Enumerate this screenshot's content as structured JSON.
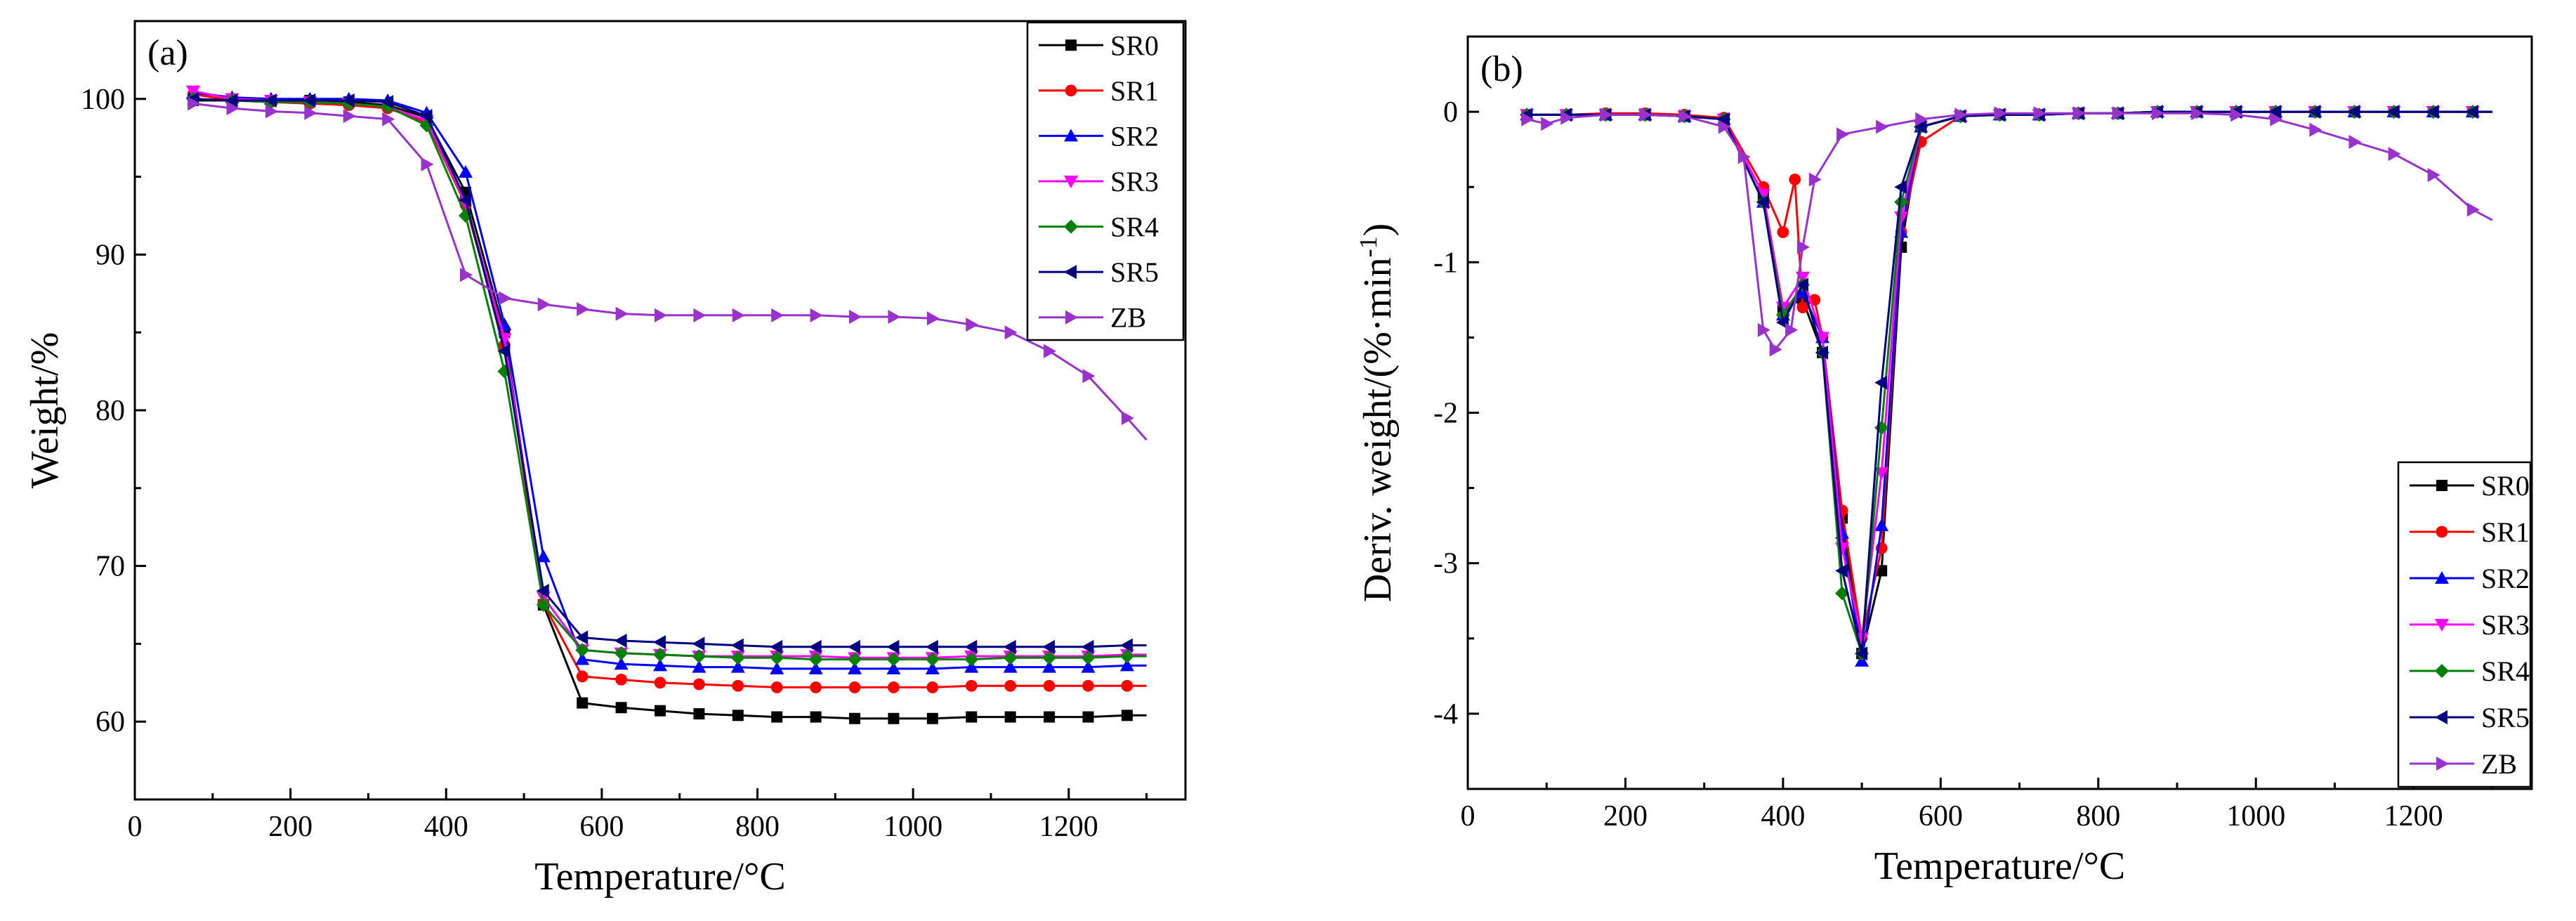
{
  "chart_data": [
    {
      "type": "line",
      "panel_label": "(a)",
      "xlabel": "Temperature/°C",
      "ylabel": "Weight/%",
      "xlim": [
        0,
        1350
      ],
      "ylim": [
        55,
        105
      ],
      "xticks": [
        0,
        200,
        400,
        600,
        800,
        1000,
        1200
      ],
      "yticks": [
        60,
        70,
        80,
        90,
        100
      ],
      "legend_position": "top-right",
      "grid": false,
      "series": [
        {
          "name": "SR0",
          "color": "#000000",
          "marker": "square",
          "x": [
            75,
            125,
            175,
            225,
            275,
            325,
            375,
            425,
            475,
            525,
            575,
            625,
            675,
            725,
            775,
            825,
            875,
            925,
            975,
            1025,
            1075,
            1125,
            1175,
            1225,
            1275,
            1300
          ],
          "y": [
            99.9,
            99.9,
            99.9,
            99.9,
            99.8,
            99.6,
            98.8,
            94.0,
            85.0,
            67.5,
            61.2,
            60.9,
            60.7,
            60.5,
            60.4,
            60.3,
            60.3,
            60.2,
            60.2,
            60.2,
            60.3,
            60.3,
            60.3,
            60.3,
            60.4,
            60.4
          ]
        },
        {
          "name": "SR1",
          "color": "#ff0000",
          "marker": "circle",
          "x": [
            75,
            125,
            175,
            225,
            275,
            325,
            375,
            425,
            475,
            525,
            575,
            625,
            675,
            725,
            775,
            825,
            875,
            925,
            975,
            1025,
            1075,
            1125,
            1175,
            1225,
            1275,
            1300
          ],
          "y": [
            100.3,
            99.9,
            99.8,
            99.7,
            99.6,
            99.4,
            98.5,
            93.2,
            84.2,
            67.6,
            62.9,
            62.7,
            62.5,
            62.4,
            62.3,
            62.2,
            62.2,
            62.2,
            62.2,
            62.2,
            62.3,
            62.3,
            62.3,
            62.3,
            62.3,
            62.3
          ]
        },
        {
          "name": "SR2",
          "color": "#0000ff",
          "marker": "triangle-up",
          "x": [
            75,
            125,
            175,
            225,
            275,
            325,
            375,
            425,
            475,
            525,
            575,
            625,
            675,
            725,
            775,
            825,
            875,
            925,
            975,
            1025,
            1075,
            1125,
            1175,
            1225,
            1275,
            1300
          ],
          "y": [
            100.4,
            100.1,
            100.0,
            100.0,
            100.0,
            99.9,
            99.1,
            95.3,
            85.5,
            70.6,
            64.0,
            63.7,
            63.6,
            63.5,
            63.5,
            63.4,
            63.4,
            63.4,
            63.4,
            63.4,
            63.5,
            63.5,
            63.5,
            63.5,
            63.6,
            63.6
          ]
        },
        {
          "name": "SR3",
          "color": "#ff00ff",
          "marker": "triangle-down",
          "x": [
            75,
            125,
            175,
            225,
            275,
            325,
            375,
            425,
            475,
            525,
            575,
            625,
            675,
            725,
            775,
            825,
            875,
            925,
            975,
            1025,
            1075,
            1125,
            1175,
            1225,
            1275,
            1300
          ],
          "y": [
            100.5,
            100.0,
            99.9,
            99.8,
            99.7,
            99.5,
            98.6,
            93.3,
            84.6,
            68.0,
            64.6,
            64.4,
            64.3,
            64.2,
            64.2,
            64.2,
            64.2,
            64.1,
            64.1,
            64.1,
            64.2,
            64.2,
            64.2,
            64.2,
            64.3,
            64.3
          ]
        },
        {
          "name": "SR4",
          "color": "#008000",
          "marker": "diamond",
          "x": [
            75,
            125,
            175,
            225,
            275,
            325,
            375,
            425,
            475,
            525,
            575,
            625,
            675,
            725,
            775,
            825,
            875,
            925,
            975,
            1025,
            1075,
            1125,
            1175,
            1225,
            1275,
            1300
          ],
          "y": [
            100.0,
            99.9,
            99.8,
            99.8,
            99.7,
            99.5,
            98.3,
            92.5,
            82.5,
            67.5,
            64.6,
            64.4,
            64.3,
            64.2,
            64.1,
            64.1,
            64.0,
            64.0,
            64.0,
            64.0,
            64.0,
            64.1,
            64.1,
            64.1,
            64.2,
            64.2
          ]
        },
        {
          "name": "SR5",
          "color": "#000080",
          "marker": "triangle-left",
          "x": [
            75,
            125,
            175,
            225,
            275,
            325,
            375,
            425,
            475,
            525,
            575,
            625,
            675,
            725,
            775,
            825,
            875,
            925,
            975,
            1025,
            1075,
            1125,
            1175,
            1225,
            1275,
            1300
          ],
          "y": [
            100.0,
            99.9,
            99.9,
            99.9,
            99.9,
            99.8,
            98.9,
            93.5,
            83.8,
            68.4,
            65.4,
            65.2,
            65.1,
            65.0,
            64.9,
            64.8,
            64.8,
            64.8,
            64.8,
            64.8,
            64.8,
            64.8,
            64.8,
            64.8,
            64.9,
            64.9
          ]
        },
        {
          "name": "ZB",
          "color": "#9932cc",
          "marker": "triangle-right",
          "x": [
            75,
            125,
            175,
            225,
            275,
            325,
            375,
            425,
            475,
            525,
            575,
            625,
            675,
            725,
            775,
            825,
            875,
            925,
            975,
            1025,
            1075,
            1125,
            1175,
            1225,
            1275,
            1300
          ],
          "y": [
            99.7,
            99.4,
            99.2,
            99.1,
            98.9,
            98.7,
            95.8,
            88.7,
            87.2,
            86.8,
            86.5,
            86.2,
            86.1,
            86.1,
            86.1,
            86.1,
            86.1,
            86.0,
            86.0,
            85.9,
            85.5,
            85.0,
            83.8,
            82.2,
            79.5,
            78.1
          ]
        }
      ]
    },
    {
      "type": "line",
      "panel_label": "(b)",
      "xlabel": "Temperature/°C",
      "ylabel": "Deriv. weight/(%·min",
      "ylabel_superscript": "-1",
      "ylabel_suffix": ")",
      "xlim": [
        0,
        1350
      ],
      "ylim": [
        -4.5,
        0.5
      ],
      "xticks": [
        0,
        200,
        400,
        600,
        800,
        1000,
        1200
      ],
      "yticks": [
        0,
        -1,
        -2,
        -3,
        -4
      ],
      "legend_position": "bottom-right",
      "grid": false,
      "series": [
        {
          "name": "SR0",
          "color": "#000000",
          "marker": "square",
          "x": [
            75,
            125,
            175,
            225,
            275,
            325,
            375,
            400,
            425,
            450,
            475,
            500,
            525,
            550,
            575,
            625,
            675,
            725,
            775,
            825,
            875,
            925,
            975,
            1025,
            1075,
            1125,
            1175,
            1225,
            1275,
            1300
          ],
          "y": [
            -0.02,
            -0.02,
            -0.02,
            -0.02,
            -0.03,
            -0.05,
            -0.55,
            -1.3,
            -1.25,
            -1.6,
            -2.7,
            -3.6,
            -3.05,
            -0.9,
            -0.1,
            -0.03,
            -0.02,
            -0.02,
            -0.01,
            -0.01,
            0.0,
            0.0,
            0.0,
            0.0,
            0.0,
            0.0,
            0.0,
            0.0,
            0.0,
            0.0
          ]
        },
        {
          "name": "SR1",
          "color": "#ff0000",
          "marker": "circle",
          "x": [
            75,
            125,
            175,
            225,
            275,
            325,
            375,
            400,
            415,
            425,
            440,
            450,
            475,
            500,
            525,
            550,
            575,
            625,
            675,
            725,
            775,
            825,
            875,
            925,
            975,
            1025,
            1075,
            1125,
            1175,
            1225,
            1275,
            1300
          ],
          "y": [
            -0.02,
            -0.02,
            -0.01,
            -0.01,
            -0.02,
            -0.04,
            -0.5,
            -0.8,
            -0.45,
            -1.3,
            -1.25,
            -1.5,
            -2.65,
            -3.5,
            -2.9,
            -0.8,
            -0.2,
            -0.03,
            -0.02,
            -0.02,
            -0.01,
            -0.01,
            0.0,
            0.0,
            0.0,
            0.0,
            0.0,
            0.0,
            0.0,
            0.0,
            0.0,
            0.0
          ]
        },
        {
          "name": "SR2",
          "color": "#0000ff",
          "marker": "triangle-up",
          "x": [
            75,
            125,
            175,
            225,
            275,
            325,
            375,
            400,
            425,
            450,
            475,
            500,
            525,
            550,
            575,
            625,
            675,
            725,
            775,
            825,
            875,
            925,
            975,
            1025,
            1075,
            1125,
            1175,
            1225,
            1275,
            1300
          ],
          "y": [
            -0.02,
            -0.02,
            -0.02,
            -0.02,
            -0.03,
            -0.05,
            -0.6,
            -1.35,
            -1.2,
            -1.5,
            -2.8,
            -3.65,
            -2.75,
            -0.8,
            -0.1,
            -0.03,
            -0.02,
            -0.02,
            -0.01,
            -0.01,
            0.0,
            0.0,
            0.0,
            0.0,
            0.0,
            0.0,
            0.0,
            0.0,
            0.0,
            0.0
          ]
        },
        {
          "name": "SR3",
          "color": "#ff00ff",
          "marker": "triangle-down",
          "x": [
            75,
            125,
            175,
            225,
            275,
            325,
            375,
            400,
            425,
            450,
            475,
            500,
            525,
            550,
            575,
            625,
            675,
            725,
            775,
            825,
            875,
            925,
            975,
            1025,
            1075,
            1125,
            1175,
            1225,
            1275,
            1300
          ],
          "y": [
            -0.02,
            -0.02,
            -0.02,
            -0.02,
            -0.03,
            -0.05,
            -0.55,
            -1.3,
            -1.1,
            -1.5,
            -2.9,
            -3.5,
            -2.4,
            -0.7,
            -0.1,
            -0.03,
            -0.02,
            -0.02,
            -0.01,
            -0.01,
            0.0,
            0.0,
            0.0,
            0.0,
            0.0,
            0.0,
            0.0,
            0.0,
            0.0,
            0.0
          ]
        },
        {
          "name": "SR4",
          "color": "#008000",
          "marker": "diamond",
          "x": [
            75,
            125,
            175,
            225,
            275,
            325,
            375,
            400,
            425,
            450,
            475,
            500,
            525,
            550,
            575,
            625,
            675,
            725,
            775,
            825,
            875,
            925,
            975,
            1025,
            1075,
            1125,
            1175,
            1225,
            1275,
            1300
          ],
          "y": [
            -0.02,
            -0.02,
            -0.02,
            -0.02,
            -0.03,
            -0.05,
            -0.6,
            -1.35,
            -1.15,
            -1.6,
            -3.2,
            -3.6,
            -2.1,
            -0.6,
            -0.1,
            -0.03,
            -0.02,
            -0.02,
            -0.01,
            -0.01,
            0.0,
            0.0,
            0.0,
            0.0,
            0.0,
            0.0,
            0.0,
            0.0,
            0.0,
            0.0
          ]
        },
        {
          "name": "SR5",
          "color": "#000080",
          "marker": "triangle-left",
          "x": [
            75,
            125,
            175,
            225,
            275,
            325,
            375,
            400,
            425,
            450,
            475,
            500,
            525,
            550,
            575,
            625,
            675,
            725,
            775,
            825,
            875,
            925,
            975,
            1025,
            1075,
            1125,
            1175,
            1225,
            1275,
            1300
          ],
          "y": [
            -0.02,
            -0.02,
            -0.02,
            -0.02,
            -0.03,
            -0.05,
            -0.6,
            -1.4,
            -1.15,
            -1.6,
            -3.05,
            -3.6,
            -1.8,
            -0.5,
            -0.1,
            -0.03,
            -0.02,
            -0.02,
            -0.01,
            -0.01,
            0.0,
            0.0,
            0.0,
            0.0,
            0.0,
            0.0,
            0.0,
            0.0,
            0.0,
            0.0
          ]
        },
        {
          "name": "ZB",
          "color": "#9932cc",
          "marker": "triangle-right",
          "x": [
            75,
            100,
            125,
            175,
            225,
            275,
            325,
            350,
            375,
            390,
            410,
            425,
            440,
            475,
            525,
            575,
            625,
            675,
            725,
            775,
            825,
            875,
            925,
            975,
            1025,
            1075,
            1125,
            1175,
            1225,
            1275,
            1300
          ],
          "y": [
            -0.05,
            -0.08,
            -0.04,
            -0.02,
            -0.02,
            -0.03,
            -0.1,
            -0.3,
            -1.45,
            -1.58,
            -1.45,
            -0.9,
            -0.45,
            -0.15,
            -0.1,
            -0.05,
            -0.02,
            -0.01,
            -0.01,
            -0.01,
            -0.01,
            -0.01,
            -0.01,
            -0.02,
            -0.05,
            -0.12,
            -0.2,
            -0.28,
            -0.42,
            -0.65,
            -0.72
          ]
        }
      ]
    }
  ]
}
